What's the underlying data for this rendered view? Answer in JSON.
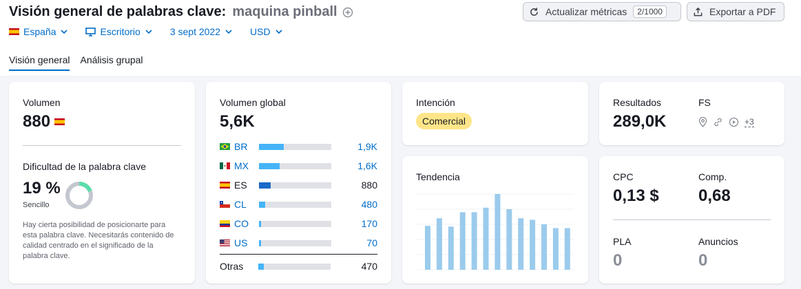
{
  "header": {
    "title": "Visión general de palabras clave:",
    "keyword": "maquina pinball",
    "refresh_label": "Actualizar métricas",
    "refresh_counter": "2/1000",
    "export_label": "Exportar a PDF"
  },
  "filters": {
    "country": "España",
    "device": "Escritorio",
    "date": "3 sept 2022",
    "currency": "USD"
  },
  "tabs": [
    {
      "label": "Visión general",
      "active": true
    },
    {
      "label": "Análisis grupal",
      "active": false
    }
  ],
  "volume": {
    "label": "Volumen",
    "value": "880"
  },
  "difficulty": {
    "label": "Dificultad de la palabra clave",
    "value": "19 %",
    "percent": 19,
    "level": "Sencillo",
    "description": "Hay cierta posibilidad de posicionarte para esta palabra clave. Necesitarás contenido de calidad centrado en el significado de la palabra clave.",
    "color": "#59ddaa"
  },
  "global_volume": {
    "label": "Volumen global",
    "value": "5,6K",
    "countries": [
      {
        "code": "BR",
        "value": "1,9K",
        "share": 0.34,
        "link": true
      },
      {
        "code": "MX",
        "value": "1,6K",
        "share": 0.29,
        "link": true
      },
      {
        "code": "ES",
        "value": "880",
        "share": 0.16,
        "link": false
      },
      {
        "code": "CL",
        "value": "480",
        "share": 0.09,
        "link": true
      },
      {
        "code": "CO",
        "value": "170",
        "share": 0.03,
        "link": true
      },
      {
        "code": "US",
        "value": "70",
        "share": 0.02,
        "link": true
      }
    ],
    "others": {
      "label": "Otras",
      "value": "470",
      "share": 0.08
    },
    "bar_color": "#45b4f7",
    "bar_color_current": "#1b6ac9"
  },
  "intent": {
    "label": "Intención",
    "value": "Comercial"
  },
  "trend": {
    "label": "Tendencia",
    "values": [
      0.58,
      0.68,
      0.57,
      0.76,
      0.76,
      0.82,
      1.0,
      0.8,
      0.68,
      0.66,
      0.6,
      0.55,
      0.55
    ]
  },
  "results": {
    "label": "Resultados",
    "value": "289,0K"
  },
  "fs": {
    "label": "FS",
    "more": "+3"
  },
  "cpc": {
    "label": "CPC",
    "value": "0,13 $"
  },
  "comp": {
    "label": "Comp.",
    "value": "0,68"
  },
  "pla": {
    "label": "PLA",
    "value": "0"
  },
  "ads": {
    "label": "Anuncios",
    "value": "0"
  }
}
